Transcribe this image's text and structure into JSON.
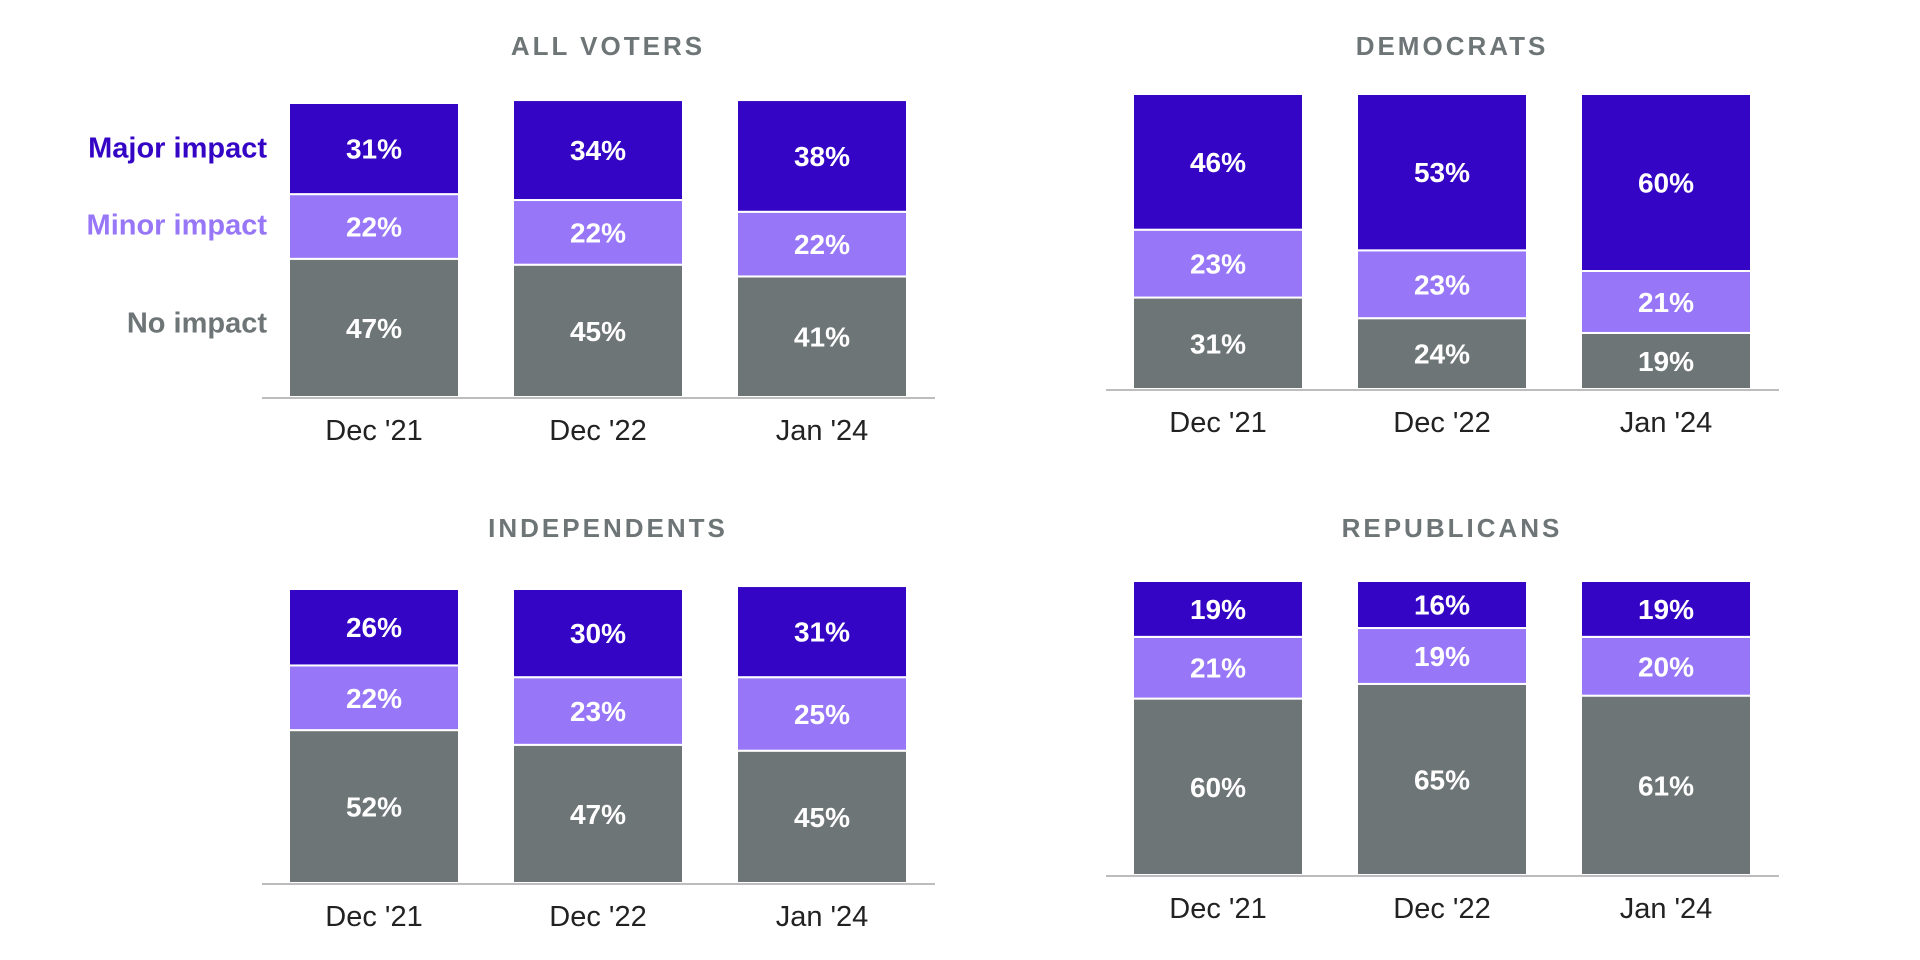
{
  "colors": {
    "major": "#3505c6",
    "minor": "#9776f8",
    "none": "#6e7576",
    "axis": "#bdbdbd",
    "title": "#6e7576",
    "tick": "#222222",
    "label_text": "#ffffff"
  },
  "legend": {
    "major": "Major impact",
    "minor": "Minor impact",
    "none": "No impact"
  },
  "chart_data": [
    {
      "type": "bar",
      "stacked": true,
      "title": "ALL VOTERS",
      "categories": [
        "Dec '21",
        "Dec '22",
        "Jan '24"
      ],
      "series": [
        {
          "name": "No impact",
          "values": [
            47,
            45,
            41
          ],
          "labels": [
            "47%",
            "45%",
            "41%"
          ]
        },
        {
          "name": "Minor impact",
          "values": [
            22,
            22,
            22
          ],
          "labels": [
            "22%",
            "22%",
            "22%"
          ]
        },
        {
          "name": "Major impact",
          "values": [
            31,
            34,
            38
          ],
          "labels": [
            "31%",
            "34%",
            "38%"
          ]
        }
      ],
      "ylim": [
        0,
        100
      ],
      "legend": "left"
    },
    {
      "type": "bar",
      "stacked": true,
      "title": "DEMOCRATS",
      "categories": [
        "Dec '21",
        "Dec '22",
        "Jan '24"
      ],
      "series": [
        {
          "name": "No impact",
          "values": [
            31,
            24,
            19
          ],
          "labels": [
            "31%",
            "24%",
            "19%"
          ]
        },
        {
          "name": "Minor impact",
          "values": [
            23,
            23,
            21
          ],
          "labels": [
            "23%",
            "23%",
            "21%"
          ]
        },
        {
          "name": "Major impact",
          "values": [
            46,
            53,
            60
          ],
          "labels": [
            "46%",
            "53%",
            "60%"
          ]
        }
      ],
      "ylim": [
        0,
        100
      ]
    },
    {
      "type": "bar",
      "stacked": true,
      "title": "INDEPENDENTS",
      "categories": [
        "Dec '21",
        "Dec '22",
        "Jan '24"
      ],
      "series": [
        {
          "name": "No impact",
          "values": [
            52,
            47,
            45
          ],
          "labels": [
            "52%",
            "47%",
            "45%"
          ]
        },
        {
          "name": "Minor impact",
          "values": [
            22,
            23,
            25
          ],
          "labels": [
            "22%",
            "23%",
            "25%"
          ]
        },
        {
          "name": "Major impact",
          "values": [
            26,
            30,
            31
          ],
          "labels": [
            "26%",
            "30%",
            "31%"
          ]
        }
      ],
      "ylim": [
        0,
        100
      ]
    },
    {
      "type": "bar",
      "stacked": true,
      "title": "REPUBLICANS",
      "categories": [
        "Dec '21",
        "Dec '22",
        "Jan '24"
      ],
      "series": [
        {
          "name": "No impact",
          "values": [
            60,
            65,
            61
          ],
          "labels": [
            "60%",
            "65%",
            "61%"
          ]
        },
        {
          "name": "Minor impact",
          "values": [
            21,
            19,
            20
          ],
          "labels": [
            "21%",
            "19%",
            "20%"
          ]
        },
        {
          "name": "Major impact",
          "values": [
            19,
            16,
            19
          ],
          "labels": [
            "19%",
            "16%",
            "19%"
          ]
        }
      ],
      "ylim": [
        0,
        100
      ]
    }
  ]
}
